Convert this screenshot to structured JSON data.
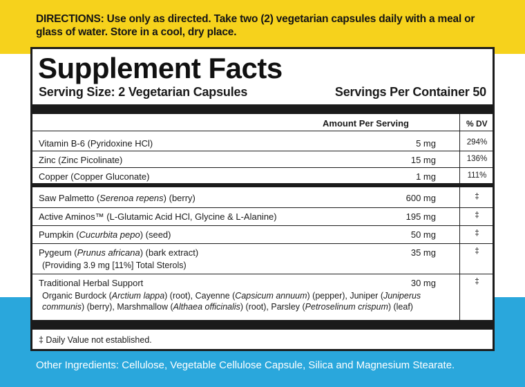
{
  "directions": {
    "label": "DIRECTIONS:",
    "text": "Use only as directed. Take two (2) vegetarian capsules daily with a meal or glass of water. Store in a cool, dry place."
  },
  "facts": {
    "title": "Supplement Facts",
    "serving_size": "Serving Size: 2 Vegetarian Capsules",
    "servings_per_container": "Servings Per Container 50",
    "header_amount": "Amount Per Serving",
    "header_dv": "% DV",
    "vitamins": [
      {
        "name": "Vitamin B-6 (Pyridoxine HCl)",
        "amount": "5 mg",
        "dv": "294%"
      },
      {
        "name": "Zinc (Zinc Picolinate)",
        "amount": "15 mg",
        "dv": "136%"
      },
      {
        "name": "Copper (Copper Gluconate)",
        "amount": "1 mg",
        "dv": "111%"
      }
    ],
    "saw_palmetto": {
      "pre": "Saw Palmetto (",
      "latin": "Serenoa repens",
      "post": ") (berry)",
      "amount": "600 mg",
      "dv": "‡"
    },
    "active_aminos": {
      "name": "Active Aminos™ (L-Glutamic Acid HCl, Glycine & L-Alanine)",
      "amount": "195 mg",
      "dv": "‡"
    },
    "pumpkin": {
      "pre": "Pumpkin (",
      "latin": "Cucurbita pepo",
      "post": ") (seed)",
      "amount": "50 mg",
      "dv": "‡"
    },
    "pygeum": {
      "pre": "Pygeum (",
      "latin": "Prunus africana",
      "post": ") (bark extract)",
      "sub": "(Providing 3.9 mg [11%] Total Sterols)",
      "amount": "35 mg",
      "dv": "‡"
    },
    "herbal": {
      "name": "Traditional Herbal Support",
      "line1_a": "Organic Burdock (",
      "line1_b": "Arctium lappa",
      "line1_c": ") (root), Cayenne (",
      "line1_d": "Capsicum annuum",
      "line1_e": ") (pepper), Juniper (",
      "line1_f": "Juniperus",
      "line2_a": "communis",
      "line2_b": ") (berry), Marshmallow (",
      "line2_c": "Althaea officinalis",
      "line2_d": ") (root), Parsley (",
      "line2_e": "Petroselinum crispum",
      "line2_f": ") (leaf)",
      "amount": "30 mg",
      "dv": "‡"
    },
    "footnote": "‡ Daily Value not established."
  },
  "other_ingredients": {
    "label": "Other Ingredients:",
    "text": "Cellulose, Vegetable Cellulose Capsule, Silica and Magnesium Stearate."
  }
}
